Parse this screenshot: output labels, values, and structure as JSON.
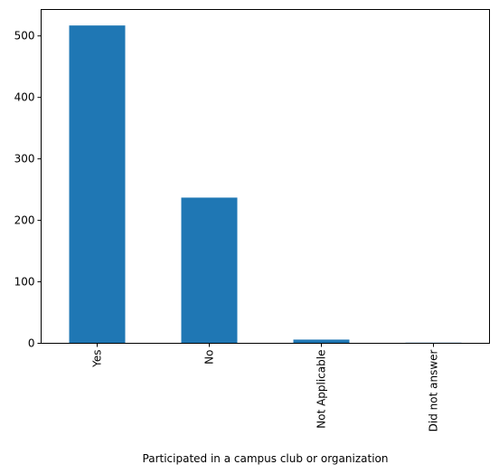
{
  "chart_data": {
    "type": "bar",
    "categories": [
      "Yes",
      "No",
      "Not Applicable",
      "Did not answer"
    ],
    "values": [
      517,
      237,
      6,
      1
    ],
    "xlabel": "Participated in a campus club or organization",
    "ylabel": "",
    "ylim": [
      0,
      543
    ],
    "yticks": [
      0,
      100,
      200,
      300,
      400,
      500
    ],
    "grid": false,
    "legend": "none",
    "bar_color": "#1f77b4",
    "x_tick_rotation": "vertical"
  }
}
